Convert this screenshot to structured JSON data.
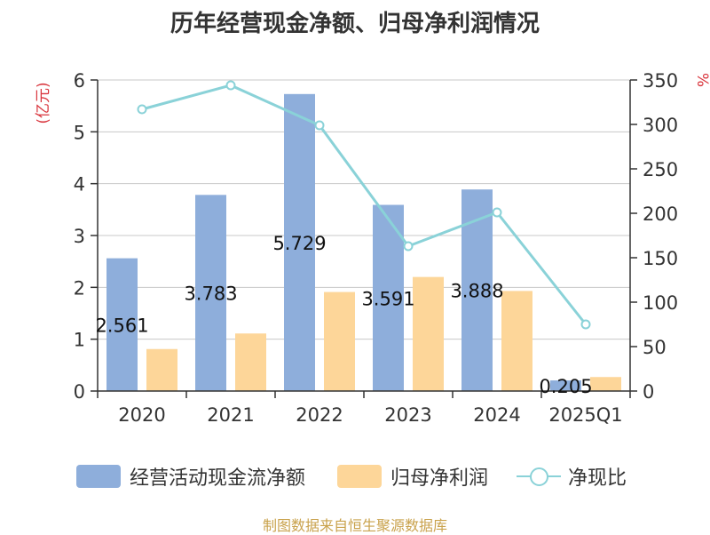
{
  "title": "历年经营现金净额、归母净利润情况",
  "source": "制图数据来自恒生聚源数据库",
  "chart_data": {
    "type": "bar",
    "title": "历年经营现金净额、归母净利润情况",
    "categories": [
      "2020",
      "2021",
      "2022",
      "2023",
      "2024",
      "2025Q1"
    ],
    "left_axis": {
      "label": "(亿元)",
      "ylim": [
        0,
        6
      ],
      "ticks": [
        "0",
        "1",
        "2",
        "3",
        "4",
        "5",
        "6"
      ]
    },
    "right_axis": {
      "label": "%",
      "ylim": [
        0,
        350
      ],
      "ticks": [
        "0",
        "50",
        "100",
        "150",
        "200",
        "250",
        "300",
        "350"
      ]
    },
    "series": [
      {
        "name": "经营活动现金流净额",
        "type": "bar",
        "axis": "left",
        "color": "#8eaedb",
        "values": [
          2.561,
          3.783,
          5.729,
          3.591,
          3.888,
          0.205
        ],
        "labels": [
          "2.561",
          "3.783",
          "5.729",
          "3.591",
          "3.888",
          "0.205"
        ]
      },
      {
        "name": "归母净利润",
        "type": "bar",
        "axis": "left",
        "color": "#fdd699",
        "values": [
          0.81,
          1.11,
          1.91,
          2.2,
          1.93,
          0.27
        ]
      },
      {
        "name": "净现比",
        "type": "line",
        "axis": "right",
        "color": "#8ad2d8",
        "values": [
          317,
          344,
          299,
          163,
          201,
          75
        ]
      }
    ],
    "grid": true,
    "legend": "bottom"
  }
}
